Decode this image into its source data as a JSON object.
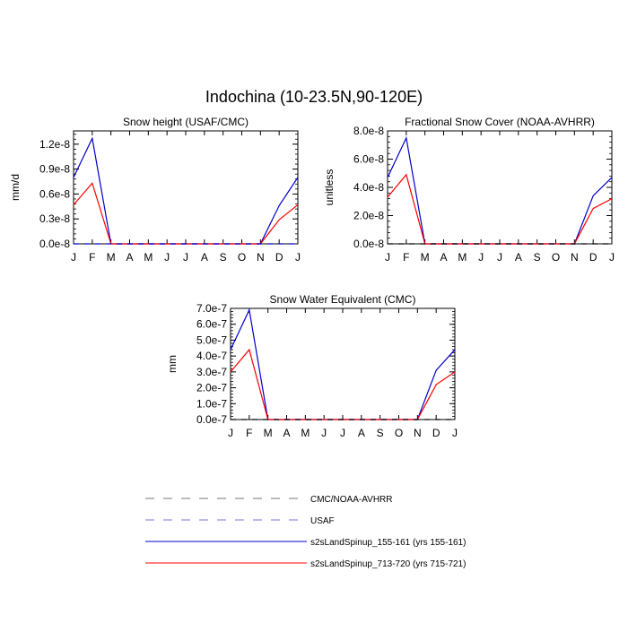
{
  "figure": {
    "title": "Indochina (10-23.5N,90-120E)"
  },
  "legend": [
    {
      "label": "CMC/NOAA-AVHRR",
      "color": "#000000",
      "style": "dashed"
    },
    {
      "label": "USAF",
      "color": "#0000cc",
      "style": "dashed"
    },
    {
      "label": "s2sLandSpinup_155-161 (yrs 155-161)",
      "color": "#0000cc",
      "style": "solid"
    },
    {
      "label": "s2sLandSpinup_713-720 (yrs 715-721)",
      "color": "#ff0000",
      "style": "solid"
    }
  ],
  "chart_data": [
    {
      "type": "line",
      "title": "Snow height (USAF/CMC)",
      "xlabel": "",
      "ylabel": "mm/d",
      "categories": [
        "J",
        "F",
        "M",
        "A",
        "M",
        "J",
        "J",
        "A",
        "S",
        "O",
        "N",
        "D",
        "J"
      ],
      "yticks": [
        "0.0e-8",
        "0.3e-8",
        "0.6e-8",
        "0.9e-8",
        "1.2e-8"
      ],
      "ytick_values": [
        0,
        0.3,
        0.6,
        0.9,
        1.2
      ],
      "ylim": [
        0,
        1.36
      ],
      "unit_scale": "e-8",
      "series": [
        {
          "name": "s2sLandSpinup_155-161 (yrs 155-161)",
          "color": "#0000cc",
          "dash": "",
          "values": [
            0.8,
            1.27,
            0,
            0,
            0,
            0,
            0,
            0,
            0,
            0,
            0,
            0.46,
            0.8
          ]
        },
        {
          "name": "s2sLandSpinup_713-720 (yrs 715-721)",
          "color": "#ff0000",
          "dash": "",
          "values": [
            0.47,
            0.73,
            0,
            0,
            0,
            0,
            0,
            0,
            0,
            0,
            0,
            0.29,
            0.47
          ]
        },
        {
          "name": "USAF",
          "color": "#0000cc",
          "dash": "6,6",
          "values": [
            0,
            0,
            0,
            0,
            0,
            0,
            0,
            0,
            0,
            0,
            0,
            0,
            0
          ]
        }
      ]
    },
    {
      "type": "line",
      "title": "Fractional Snow Cover (NOAA-AVHRR)",
      "xlabel": "",
      "ylabel": "unitless",
      "categories": [
        "J",
        "F",
        "M",
        "A",
        "M",
        "J",
        "J",
        "A",
        "S",
        "O",
        "N",
        "D",
        "J"
      ],
      "yticks": [
        "0.0e-8",
        "2.0e-8",
        "4.0e-8",
        "6.0e-8",
        "8.0e-8"
      ],
      "ytick_values": [
        0,
        2,
        4,
        6,
        8
      ],
      "ylim": [
        0,
        8.0
      ],
      "unit_scale": "e-8",
      "series": [
        {
          "name": "s2sLandSpinup_155-161 (yrs 155-161)",
          "color": "#0000cc",
          "dash": "",
          "values": [
            4.7,
            7.5,
            0,
            0,
            0,
            0,
            0,
            0,
            0,
            0,
            0,
            3.4,
            4.7
          ]
        },
        {
          "name": "s2sLandSpinup_713-720 (yrs 715-721)",
          "color": "#ff0000",
          "dash": "",
          "values": [
            3.3,
            4.9,
            0,
            0,
            0,
            0,
            0,
            0,
            0,
            0,
            0,
            2.5,
            3.2
          ]
        },
        {
          "name": "CMC/NOAA-AVHRR",
          "color": "#000000",
          "dash": "6,6",
          "values": [
            0,
            0,
            0,
            0,
            0,
            0,
            0,
            0,
            0,
            0,
            0,
            0,
            0
          ]
        }
      ]
    },
    {
      "type": "line",
      "title": "Snow Water Equivalent (CMC)",
      "xlabel": "",
      "ylabel": "mm",
      "categories": [
        "J",
        "F",
        "M",
        "A",
        "M",
        "J",
        "J",
        "A",
        "S",
        "O",
        "N",
        "D",
        "J"
      ],
      "yticks": [
        "0.0e-7",
        "1.0e-7",
        "2.0e-7",
        "3.0e-7",
        "4.0e-7",
        "5.0e-7",
        "6.0e-7",
        "7.0e-7"
      ],
      "ytick_values": [
        0,
        1,
        2,
        3,
        4,
        5,
        6,
        7
      ],
      "ylim": [
        0,
        7.0
      ],
      "unit_scale": "e-7",
      "series": [
        {
          "name": "s2sLandSpinup_155-161 (yrs 155-161)",
          "color": "#0000cc",
          "dash": "",
          "values": [
            4.4,
            6.9,
            0,
            0,
            0,
            0,
            0,
            0,
            0,
            0,
            0,
            3.1,
            4.4
          ]
        },
        {
          "name": "s2sLandSpinup_713-720 (yrs 715-721)",
          "color": "#ff0000",
          "dash": "",
          "values": [
            3.0,
            4.4,
            0,
            0,
            0,
            0,
            0,
            0,
            0,
            0,
            0,
            2.2,
            3.0
          ]
        },
        {
          "name": "CMC/NOAA-AVHRR",
          "color": "#000000",
          "dash": "6,6",
          "values": [
            0,
            0,
            0,
            0,
            0,
            0,
            0,
            0,
            0,
            0,
            0,
            0,
            0
          ]
        }
      ]
    }
  ]
}
